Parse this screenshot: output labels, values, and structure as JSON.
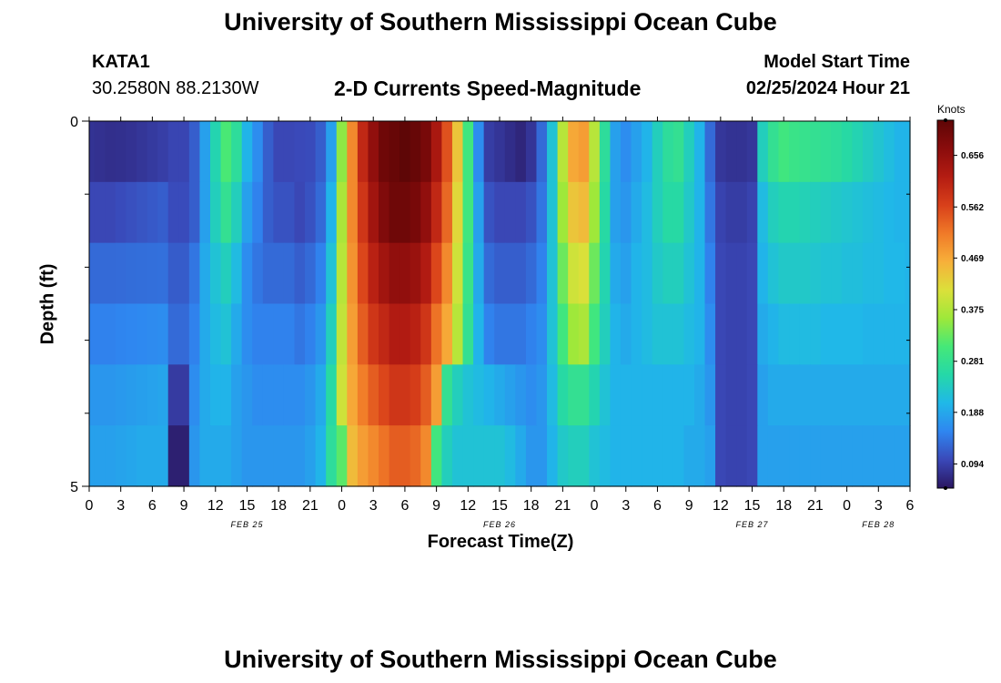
{
  "header": {
    "title": "University of Southern Mississippi Ocean Cube",
    "station_id": "KATA1",
    "coordinates": "30.2580N  88.2130W",
    "subtitle": "2-D Currents Speed-Magnitude",
    "model_start_label": "Model Start Time",
    "model_start_value": "02/25/2024 Hour 21"
  },
  "footer": {
    "title": "University of Southern Mississippi Ocean Cube"
  },
  "chart_data": {
    "type": "heatmap",
    "xlabel": "Forecast Time(Z)",
    "ylabel": "Depth (ft)",
    "x_tick_labels": [
      "0",
      "3",
      "6",
      "9",
      "12",
      "15",
      "18",
      "21",
      "0",
      "3",
      "6",
      "9",
      "12",
      "15",
      "18",
      "21",
      "0",
      "3",
      "6",
      "9",
      "12",
      "15",
      "18",
      "21",
      "0",
      "3",
      "6"
    ],
    "date_labels": [
      "FEB 25",
      "FEB 26",
      "FEB 27",
      "FEB 28"
    ],
    "y_tick_labels": [
      "0",
      "5"
    ],
    "ylim": [
      0,
      5
    ],
    "colorbar": {
      "units": "Knots",
      "tick_labels": [
        "0.656",
        "0.562",
        "0.469",
        "0.375",
        "0.281",
        "0.188",
        "0.094"
      ],
      "range": [
        0.05,
        0.72
      ],
      "colors": [
        "#2a1660",
        "#3a48b8",
        "#2f86f0",
        "#20b8e8",
        "#25d8a8",
        "#45e878",
        "#9ee83a",
        "#dbe03a",
        "#f7b03a",
        "#f07a28",
        "#d8401a",
        "#b41c12",
        "#8a0c0c",
        "#5e0606"
      ]
    },
    "hours": [
      0,
      1,
      2,
      3,
      4,
      5,
      6,
      7,
      8,
      9,
      10,
      11,
      12,
      13,
      14,
      15,
      16,
      17,
      18,
      19,
      20,
      21,
      22,
      23,
      24,
      25,
      26,
      27,
      28,
      29,
      30,
      31,
      32,
      33,
      34,
      35,
      36,
      37,
      38,
      39,
      40,
      41,
      42,
      43,
      44,
      45,
      46,
      47,
      48,
      49,
      50,
      51,
      52,
      53,
      54,
      55,
      56,
      57,
      58,
      59,
      60,
      61,
      62,
      63,
      64,
      65,
      66,
      67,
      68,
      69,
      70,
      71,
      72,
      73,
      74,
      75,
      76,
      77,
      78
    ],
    "depths_ft": [
      0,
      1,
      2,
      3,
      4,
      5
    ],
    "speed_knots": [
      [
        0.08,
        0.078,
        0.076,
        0.077,
        0.079,
        0.083,
        0.087,
        0.091,
        0.098,
        0.098,
        0.12,
        0.18,
        0.25,
        0.31,
        0.27,
        0.2,
        0.16,
        0.12,
        0.1,
        0.1,
        0.102,
        0.104,
        0.12,
        0.18,
        0.35,
        0.5,
        0.6,
        0.66,
        0.7,
        0.71,
        0.72,
        0.71,
        0.69,
        0.63,
        0.55,
        0.44,
        0.3,
        0.16,
        0.09,
        0.082,
        0.074,
        0.066,
        0.082,
        0.13,
        0.22,
        0.38,
        0.47,
        0.48,
        0.38,
        0.27,
        0.18,
        0.16,
        0.18,
        0.2,
        0.24,
        0.27,
        0.28,
        0.24,
        0.2,
        0.13,
        0.084,
        0.08,
        0.08,
        0.084,
        0.24,
        0.28,
        0.3,
        0.29,
        0.285,
        0.28,
        0.275,
        0.27,
        0.26,
        0.248,
        0.236,
        0.224,
        0.212,
        0.2,
        0.2
      ],
      [
        0.1,
        0.1,
        0.1,
        0.104,
        0.108,
        0.112,
        0.116,
        0.12,
        0.104,
        0.104,
        0.12,
        0.18,
        0.24,
        0.28,
        0.24,
        0.18,
        0.15,
        0.12,
        0.11,
        0.11,
        0.1,
        0.11,
        0.13,
        0.2,
        0.37,
        0.5,
        0.58,
        0.64,
        0.68,
        0.7,
        0.7,
        0.69,
        0.66,
        0.6,
        0.53,
        0.42,
        0.3,
        0.18,
        0.11,
        0.1,
        0.1,
        0.1,
        0.11,
        0.14,
        0.22,
        0.36,
        0.44,
        0.45,
        0.36,
        0.26,
        0.18,
        0.17,
        0.19,
        0.21,
        0.24,
        0.26,
        0.26,
        0.23,
        0.2,
        0.14,
        0.096,
        0.09,
        0.09,
        0.096,
        0.21,
        0.24,
        0.25,
        0.25,
        0.245,
        0.24,
        0.235,
        0.23,
        0.225,
        0.22,
        0.215,
        0.21,
        0.205,
        0.2,
        0.2
      ],
      [
        0.13,
        0.13,
        0.13,
        0.131,
        0.132,
        0.133,
        0.134,
        0.135,
        0.118,
        0.118,
        0.14,
        0.19,
        0.22,
        0.24,
        0.21,
        0.16,
        0.14,
        0.13,
        0.13,
        0.13,
        0.12,
        0.13,
        0.15,
        0.22,
        0.38,
        0.49,
        0.56,
        0.61,
        0.64,
        0.66,
        0.66,
        0.65,
        0.62,
        0.56,
        0.5,
        0.4,
        0.29,
        0.19,
        0.13,
        0.12,
        0.12,
        0.12,
        0.13,
        0.15,
        0.22,
        0.33,
        0.4,
        0.41,
        0.33,
        0.25,
        0.19,
        0.18,
        0.2,
        0.21,
        0.23,
        0.24,
        0.24,
        0.22,
        0.2,
        0.15,
        0.1,
        0.096,
        0.096,
        0.1,
        0.2,
        0.22,
        0.23,
        0.23,
        0.23,
        0.225,
        0.22,
        0.22,
        0.215,
        0.215,
        0.21,
        0.21,
        0.205,
        0.205,
        0.2
      ],
      [
        0.15,
        0.15,
        0.15,
        0.152,
        0.154,
        0.156,
        0.158,
        0.16,
        0.13,
        0.13,
        0.15,
        0.19,
        0.21,
        0.22,
        0.19,
        0.16,
        0.15,
        0.15,
        0.15,
        0.15,
        0.14,
        0.15,
        0.17,
        0.24,
        0.39,
        0.48,
        0.54,
        0.58,
        0.6,
        0.62,
        0.62,
        0.61,
        0.58,
        0.52,
        0.47,
        0.38,
        0.28,
        0.2,
        0.15,
        0.14,
        0.14,
        0.14,
        0.15,
        0.16,
        0.22,
        0.3,
        0.36,
        0.37,
        0.3,
        0.24,
        0.2,
        0.19,
        0.2,
        0.21,
        0.22,
        0.22,
        0.22,
        0.21,
        0.2,
        0.16,
        0.1,
        0.096,
        0.096,
        0.1,
        0.19,
        0.2,
        0.21,
        0.21,
        0.21,
        0.21,
        0.205,
        0.205,
        0.205,
        0.205,
        0.2,
        0.2,
        0.2,
        0.2,
        0.2
      ],
      [
        0.17,
        0.17,
        0.17,
        0.173,
        0.176,
        0.179,
        0.182,
        0.185,
        0.088,
        0.088,
        0.16,
        0.19,
        0.2,
        0.2,
        0.18,
        0.17,
        0.16,
        0.16,
        0.16,
        0.16,
        0.16,
        0.17,
        0.19,
        0.26,
        0.4,
        0.47,
        0.51,
        0.54,
        0.56,
        0.58,
        0.58,
        0.57,
        0.54,
        0.48,
        0.28,
        0.24,
        0.22,
        0.21,
        0.2,
        0.19,
        0.18,
        0.17,
        0.16,
        0.17,
        0.21,
        0.26,
        0.28,
        0.28,
        0.25,
        0.22,
        0.2,
        0.2,
        0.2,
        0.2,
        0.2,
        0.2,
        0.2,
        0.2,
        0.19,
        0.17,
        0.1,
        0.096,
        0.096,
        0.1,
        0.18,
        0.19,
        0.19,
        0.19,
        0.19,
        0.19,
        0.19,
        0.19,
        0.19,
        0.19,
        0.19,
        0.19,
        0.19,
        0.19,
        0.19
      ],
      [
        0.18,
        0.18,
        0.18,
        0.183,
        0.186,
        0.19,
        0.19,
        0.19,
        0.06,
        0.06,
        0.17,
        0.19,
        0.19,
        0.19,
        0.18,
        0.17,
        0.17,
        0.17,
        0.17,
        0.17,
        0.17,
        0.18,
        0.2,
        0.27,
        0.32,
        0.45,
        0.48,
        0.5,
        0.52,
        0.54,
        0.54,
        0.53,
        0.5,
        0.3,
        0.24,
        0.22,
        0.22,
        0.22,
        0.22,
        0.22,
        0.21,
        0.19,
        0.17,
        0.17,
        0.2,
        0.23,
        0.24,
        0.24,
        0.22,
        0.21,
        0.2,
        0.2,
        0.2,
        0.2,
        0.2,
        0.2,
        0.2,
        0.19,
        0.19,
        0.18,
        0.1,
        0.096,
        0.096,
        0.1,
        0.18,
        0.18,
        0.18,
        0.18,
        0.18,
        0.18,
        0.18,
        0.18,
        0.18,
        0.18,
        0.18,
        0.18,
        0.18,
        0.18,
        0.18
      ]
    ]
  }
}
